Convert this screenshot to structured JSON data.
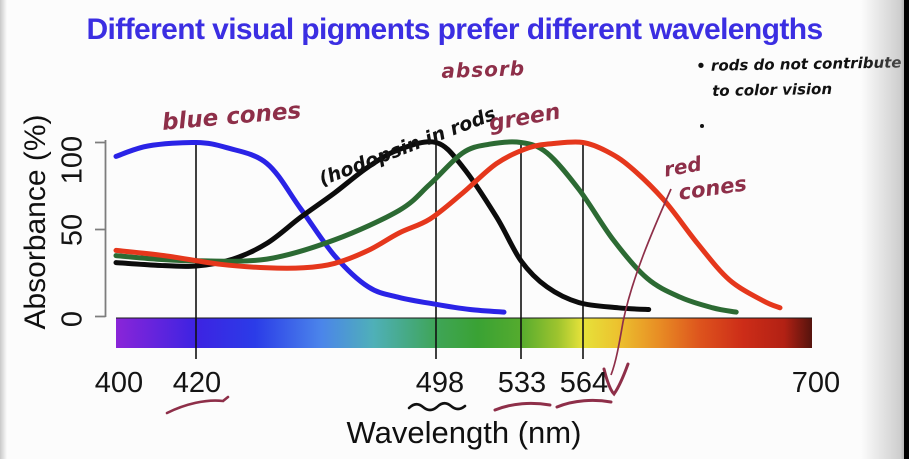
{
  "page": {
    "title": "Different visual pigments prefer different wavelengths",
    "title_color": "#3b2ee2"
  },
  "chart_data": {
    "type": "line",
    "title": "Different visual pigments prefer different wavelengths",
    "xlabel": "Wavelength (nm)",
    "ylabel": "Absorbance (%)",
    "xlim": [
      400,
      700
    ],
    "ylim": [
      0,
      100
    ],
    "grid": false,
    "spectrum_bar": true,
    "y_ticks": [
      {
        "label": "100"
      },
      {
        "label": "50"
      },
      {
        "label": "0"
      }
    ],
    "x_ticks": [
      {
        "label": "400",
        "muted": false
      },
      {
        "label": "420",
        "muted": true
      },
      {
        "label": "498",
        "muted": true
      },
      {
        "label": "533",
        "muted": true
      },
      {
        "label": "564",
        "muted": true
      },
      {
        "label": "700",
        "muted": false
      }
    ],
    "peak_lines_nm": [
      420,
      498,
      533,
      564
    ],
    "series": [
      {
        "name": "blue cones",
        "color": "#2a23e6",
        "peak_nm": 420,
        "points": [
          [
            400,
            92
          ],
          [
            408,
            98
          ],
          [
            420,
            100
          ],
          [
            430,
            97
          ],
          [
            443,
            88
          ],
          [
            454,
            62
          ],
          [
            465,
            35
          ],
          [
            476,
            17
          ],
          [
            486,
            11
          ],
          [
            498,
            7
          ],
          [
            512,
            4
          ],
          [
            526,
            2.5
          ]
        ]
      },
      {
        "name": "rhodopsin in rods",
        "color": "#0c0c0c",
        "peak_nm": 498,
        "points": [
          [
            400,
            31
          ],
          [
            410,
            29.5
          ],
          [
            420,
            29
          ],
          [
            432,
            33
          ],
          [
            443,
            42
          ],
          [
            454,
            57
          ],
          [
            465,
            71
          ],
          [
            476,
            86
          ],
          [
            486,
            96
          ],
          [
            498,
            100
          ],
          [
            509,
            86
          ],
          [
            523,
            57
          ],
          [
            533,
            32
          ],
          [
            546,
            17
          ],
          [
            562,
            8
          ],
          [
            585,
            5
          ],
          [
            603,
            4
          ]
        ]
      },
      {
        "name": "green cones",
        "color": "#2c6a33",
        "peak_nm": 533,
        "points": [
          [
            400,
            35
          ],
          [
            410,
            33
          ],
          [
            420,
            32
          ],
          [
            443,
            33
          ],
          [
            465,
            44
          ],
          [
            486,
            61
          ],
          [
            496,
            76
          ],
          [
            509,
            94
          ],
          [
            520,
            99
          ],
          [
            533,
            100
          ],
          [
            546,
            94
          ],
          [
            562,
            73
          ],
          [
            582,
            44
          ],
          [
            602,
            22
          ],
          [
            622,
            11
          ],
          [
            641,
            5
          ],
          [
            655,
            2.5
          ]
        ]
      },
      {
        "name": "red cones",
        "color": "#e5371c",
        "peak_nm": 564,
        "points": [
          [
            400,
            38
          ],
          [
            412,
            35
          ],
          [
            428,
            30
          ],
          [
            443,
            28
          ],
          [
            455,
            28
          ],
          [
            465,
            30.5
          ],
          [
            476,
            38
          ],
          [
            486,
            48
          ],
          [
            496,
            56
          ],
          [
            509,
            71
          ],
          [
            523,
            88
          ],
          [
            537,
            97
          ],
          [
            550,
            99.5
          ],
          [
            564,
            100
          ],
          [
            578,
            95
          ],
          [
            592,
            86
          ],
          [
            612,
            67
          ],
          [
            632,
            42
          ],
          [
            651,
            21
          ],
          [
            671,
            9
          ],
          [
            681,
            5
          ]
        ]
      }
    ]
  },
  "annotations": {
    "ink_color": "#8e2f49",
    "absorb": "absorb",
    "blue_cones": "blue cones",
    "rhodopsin": "(hodopsin in rods",
    "green": "green",
    "red_line1": "red",
    "red_line2": "cones",
    "rods_note_line1": "• rods do not contribute",
    "rods_note_line2": "to color vision"
  }
}
